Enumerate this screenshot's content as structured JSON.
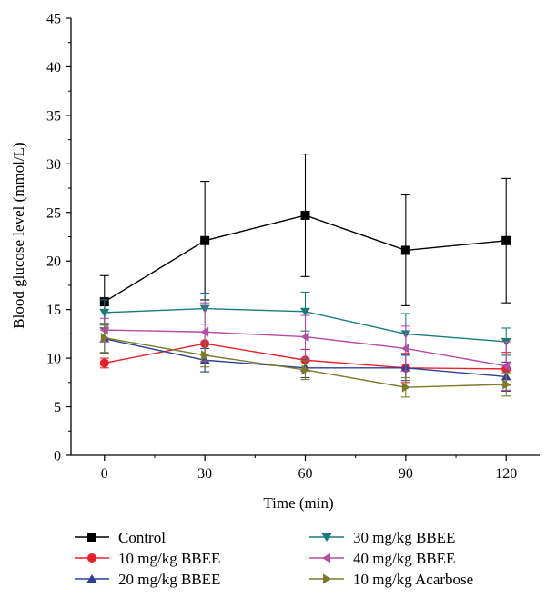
{
  "chart_data": {
    "type": "line",
    "xlabel": "Time (min)",
    "ylabel": "Blood glucose level (mmol/L)",
    "xlim": [
      -10,
      130
    ],
    "ylim": [
      0,
      45
    ],
    "x_ticks": [
      0,
      30,
      60,
      90,
      120
    ],
    "y_ticks": [
      0,
      5,
      10,
      15,
      20,
      25,
      30,
      35,
      40,
      45
    ],
    "grid": false,
    "legend_position": "bottom",
    "x": [
      0,
      30,
      60,
      90,
      120
    ],
    "series": [
      {
        "name": "Control",
        "color": "#000000",
        "marker": "square",
        "values": [
          15.8,
          22.1,
          24.7,
          21.1,
          22.1
        ],
        "errors": [
          2.7,
          6.1,
          6.3,
          5.7,
          6.4
        ]
      },
      {
        "name": "10 mg/kg BBEE",
        "color": "#e8202a",
        "marker": "circle",
        "values": [
          9.5,
          11.5,
          9.8,
          9.0,
          8.9
        ],
        "errors": [
          0.5,
          1.2,
          1.1,
          1.5,
          1.7
        ]
      },
      {
        "name": "20 mg/kg BBEE",
        "color": "#2b3f98",
        "marker": "triangle-up",
        "values": [
          12.0,
          9.8,
          9.0,
          9.0,
          8.1
        ],
        "errors": [
          1.5,
          1.2,
          1.0,
          1.3,
          1.5
        ]
      },
      {
        "name": "30 mg/kg BBEE",
        "color": "#1a7a78",
        "marker": "triangle-down",
        "values": [
          14.7,
          15.1,
          14.8,
          12.5,
          11.7
        ],
        "errors": [
          1.3,
          1.6,
          2.0,
          2.1,
          1.4
        ]
      },
      {
        "name": "40 mg/kg BBEE",
        "color": "#b64da4",
        "marker": "triangle-left",
        "values": [
          12.9,
          12.7,
          12.2,
          11.0,
          9.2
        ],
        "errors": [
          1.2,
          3.0,
          2.2,
          2.3,
          2.5
        ]
      },
      {
        "name": "10 mg/kg Acarbose",
        "color": "#7a7a2a",
        "marker": "triangle-right",
        "values": [
          12.1,
          10.3,
          8.8,
          7.0,
          7.3
        ],
        "errors": [
          1.5,
          1.2,
          1.0,
          1.0,
          1.2
        ]
      }
    ]
  }
}
